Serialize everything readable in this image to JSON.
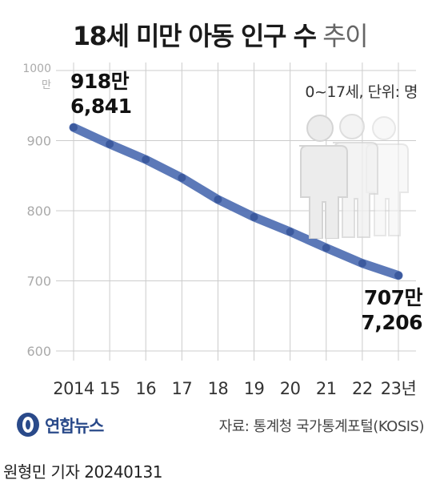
{
  "title": {
    "main": "18세 미만 아동 인구 수",
    "sub": "추이"
  },
  "unit_note": "0~17세, 단위: 명",
  "callouts": {
    "start_short": "918만",
    "start_full": "6,841",
    "end_short": "707만",
    "end_full": "7,206"
  },
  "source": "자료: 통계청 국가통계포털(KOSIS)",
  "logo_text": "연합뉴스",
  "byline": "원형민 기자  20240131",
  "colors": {
    "line": "#4a6ab0",
    "point": "#3c5a9e",
    "grid": "#cccccc",
    "figure": "#d9d9d9"
  },
  "chart_data": {
    "type": "line",
    "categories": [
      "2014",
      "15",
      "16",
      "17",
      "18",
      "19",
      "20",
      "21",
      "22",
      "23년"
    ],
    "series": [
      {
        "values": [
          918.6841,
          895.0,
          873.0,
          847.0,
          816.0,
          791.0,
          770.0,
          747.0,
          725.0,
          707.7206
        ]
      }
    ],
    "yticks": [
      600,
      700,
      800,
      900,
      1000
    ],
    "ytick_labels": [
      "600",
      "700",
      "800",
      "900",
      "1000"
    ],
    "ytick_unit": "만",
    "ylim": [
      600,
      1000
    ],
    "grid": true
  }
}
